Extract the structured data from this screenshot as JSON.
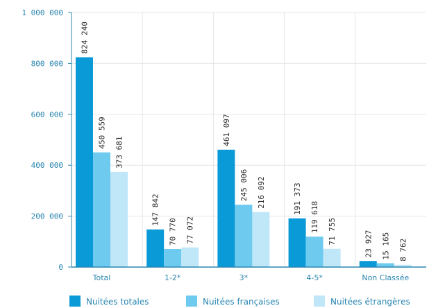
{
  "chart_data": {
    "type": "bar",
    "categories": [
      "Total",
      "1-2*",
      "3*",
      "4-5*",
      "Non Classée"
    ],
    "series": [
      {
        "name": "Nuitées totales",
        "color": "#0a9ad8",
        "values": [
          824240,
          147842,
          461097,
          191373,
          23927
        ],
        "labels": [
          "824 240",
          "147 842",
          "461 097",
          "191 373",
          "23 927"
        ]
      },
      {
        "name": "Nuitées françaises",
        "color": "#6fcaf0",
        "values": [
          450559,
          70770,
          245006,
          119618,
          15165
        ],
        "labels": [
          "450 559",
          "70 770",
          "245 006",
          "119 618",
          "15 165"
        ]
      },
      {
        "name": "Nuitées étrangères",
        "color": "#bfe7f8",
        "values": [
          373681,
          77072,
          216092,
          71755,
          8762
        ],
        "labels": [
          "373 681",
          "77 072",
          "216 092",
          "71 755",
          "8 762"
        ]
      }
    ],
    "yticks": [
      0,
      200000,
      400000,
      600000,
      800000,
      1000000
    ],
    "ytick_labels": [
      "0",
      "200 000",
      "400 000",
      "600 000",
      "800 000",
      "1 000 000"
    ],
    "ylim": [
      0,
      1000000
    ],
    "grid": true,
    "legend_position": "bottom"
  }
}
